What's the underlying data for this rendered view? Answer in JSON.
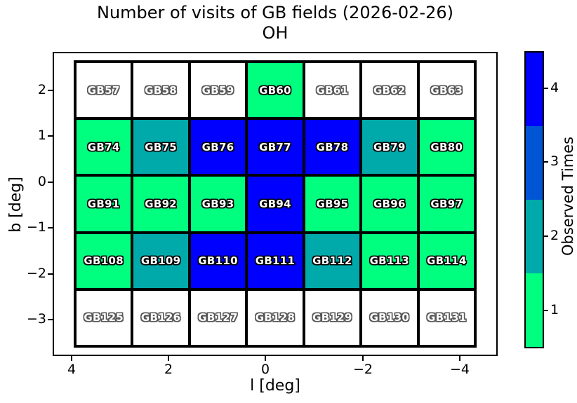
{
  "title": {
    "line1": "Number of visits of GB fields (2026-02-26)",
    "line2": "OH"
  },
  "axes": {
    "xlabel": "l [deg]",
    "ylabel": "b [deg]",
    "x_tick_labels": [
      "4",
      "2",
      "0",
      "−2",
      "−4"
    ],
    "y_tick_labels": [
      "2",
      "1",
      "0",
      "−1",
      "−2",
      "−3"
    ]
  },
  "colorbar": {
    "label": "Observed Times",
    "tick_labels_top_to_bottom": [
      "4",
      "3",
      "2",
      "1"
    ]
  },
  "chart_data": {
    "type": "heatmap",
    "title": "Number of visits of GB fields (2026-02-26)",
    "subtitle": "OH",
    "xlabel": "l [deg]",
    "ylabel": "b [deg]",
    "x_axis": {
      "ticks": [
        4,
        2,
        0,
        -2,
        -4
      ],
      "inverted": true
    },
    "y_axis": {
      "ticks": [
        2,
        1,
        0,
        -1,
        -2,
        -3
      ]
    },
    "colorbar": {
      "label": "Observed Times",
      "ticks": [
        1,
        2,
        3,
        4
      ],
      "colors": {
        "1": "#00FF7F",
        "2": "#00AAAA",
        "3": "#0055D5",
        "4": "#0000FF"
      }
    },
    "unobserved_color": "#FFFFFF",
    "grid_line_color": "#000000",
    "rows": [
      {
        "fields": [
          "GB57",
          "GB58",
          "GB59",
          "GB60",
          "GB61",
          "GB62",
          "GB63"
        ],
        "visits": [
          0,
          0,
          0,
          1,
          0,
          0,
          0
        ]
      },
      {
        "fields": [
          "GB74",
          "GB75",
          "GB76",
          "GB77",
          "GB78",
          "GB79",
          "GB80"
        ],
        "visits": [
          1,
          2,
          4,
          4,
          4,
          2,
          1
        ]
      },
      {
        "fields": [
          "GB91",
          "GB92",
          "GB93",
          "GB94",
          "GB95",
          "GB96",
          "GB97"
        ],
        "visits": [
          1,
          1,
          1,
          4,
          1,
          1,
          1
        ]
      },
      {
        "fields": [
          "GB108",
          "GB109",
          "GB110",
          "GB111",
          "GB112",
          "GB113",
          "GB114"
        ],
        "visits": [
          1,
          2,
          4,
          4,
          2,
          1,
          1
        ]
      },
      {
        "fields": [
          "GB125",
          "GB126",
          "GB127",
          "GB128",
          "GB129",
          "GB130",
          "GB131"
        ],
        "visits": [
          0,
          0,
          0,
          0,
          0,
          0,
          0
        ]
      }
    ]
  }
}
